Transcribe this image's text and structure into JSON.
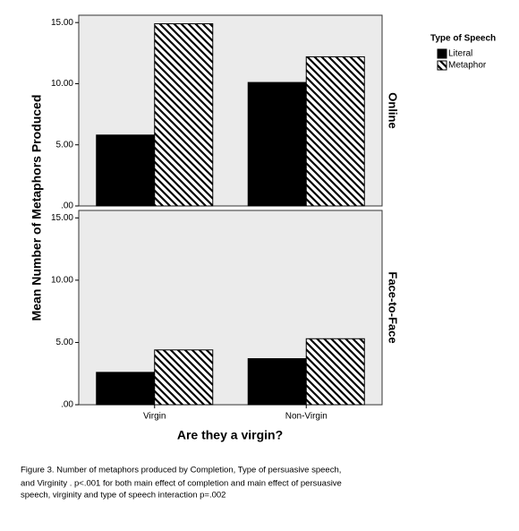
{
  "chart_data": [
    {
      "type": "bar",
      "title": "Online",
      "categories": [
        "Virgin",
        "Non-Virgin"
      ],
      "series": [
        {
          "name": "Literal",
          "color": "#000000",
          "values": [
            5.8,
            10.1
          ]
        },
        {
          "name": "Metaphor",
          "color": "#000000",
          "hatch": true,
          "values": [
            14.9,
            12.2
          ]
        }
      ],
      "ylim": [
        0,
        15.6
      ],
      "yticks": [
        {
          "value": 0,
          "label": ".00"
        },
        {
          "value": 5,
          "label": "5.00"
        },
        {
          "value": 10,
          "label": "10.00"
        },
        {
          "value": 15,
          "label": "15.00"
        }
      ]
    },
    {
      "type": "bar",
      "title": "Face-to-Face",
      "categories": [
        "Virgin",
        "Non-Virgin"
      ],
      "series": [
        {
          "name": "Literal",
          "color": "#000000",
          "values": [
            2.6,
            3.7
          ]
        },
        {
          "name": "Metaphor",
          "color": "#000000",
          "hatch": true,
          "values": [
            4.4,
            5.3
          ]
        }
      ],
      "ylim": [
        0,
        15.6
      ],
      "yticks": [
        {
          "value": 0,
          "label": ".00"
        },
        {
          "value": 5,
          "label": "5.00"
        },
        {
          "value": 10,
          "label": "10.00"
        },
        {
          "value": 15,
          "label": "15.00"
        }
      ]
    }
  ],
  "shared": {
    "xlabel": "Are they a virgin?",
    "ylabel": "Mean Number of Metaphors Produced",
    "legend_title": "Type of Speech"
  },
  "caption": [
    "Figure 3. Number of metaphors produced by Completion, Type of persuasive speech,",
    "and Virginity . p<.001 for both main effect of completion and main effect of persuasive",
    "speech, virginity and type of speech interaction p=.002"
  ]
}
